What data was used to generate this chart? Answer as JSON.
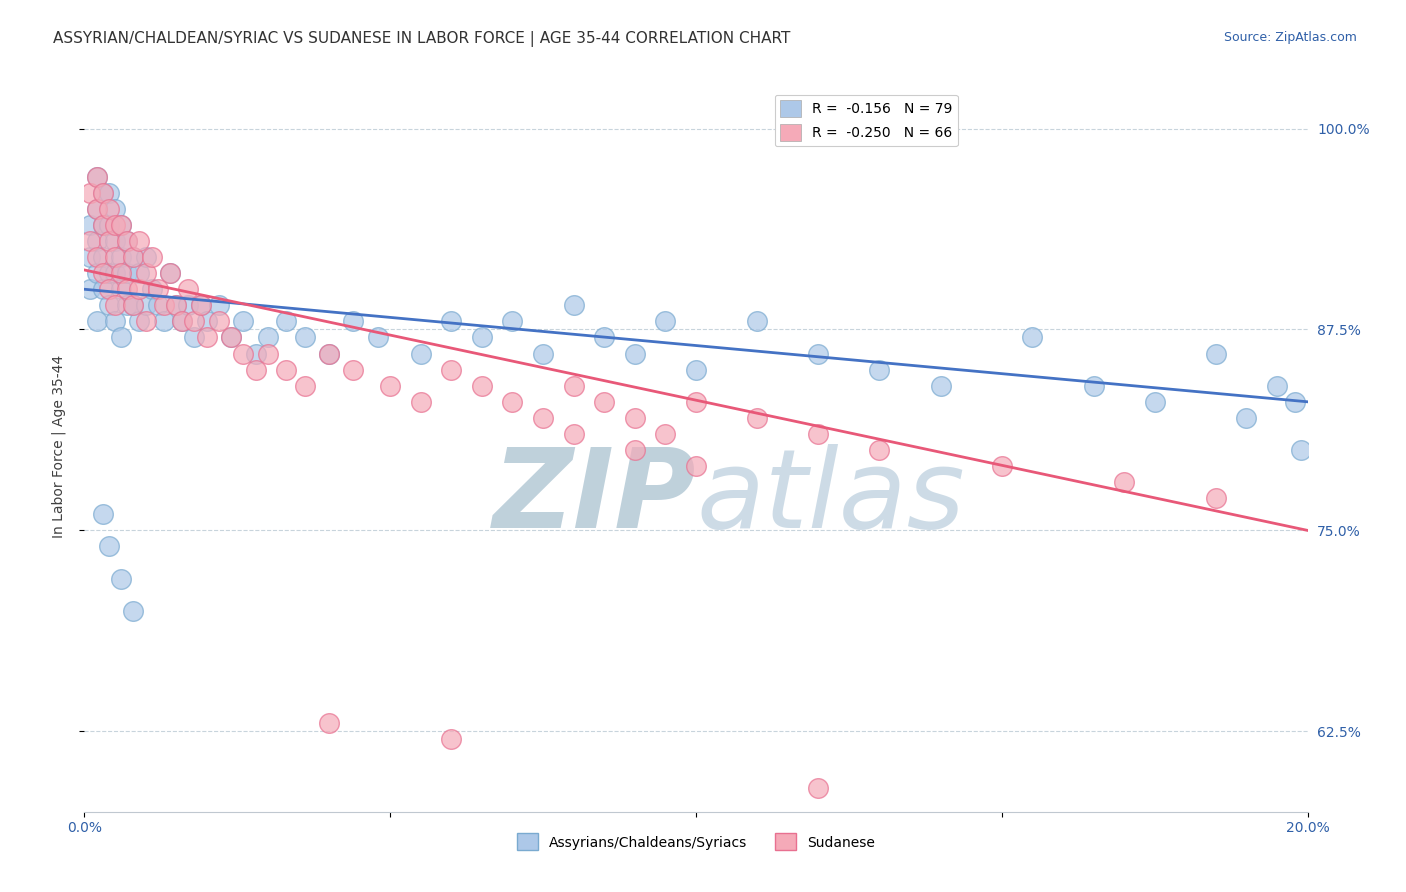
{
  "title": "ASSYRIAN/CHALDEAN/SYRIAC VS SUDANESE IN LABOR FORCE | AGE 35-44 CORRELATION CHART",
  "source_text": "Source: ZipAtlas.com",
  "ylabel": "In Labor Force | Age 35-44",
  "xmin": 0.0,
  "xmax": 0.2,
  "ymin": 0.575,
  "ymax": 1.03,
  "yticks": [
    0.625,
    0.75,
    0.875,
    1.0
  ],
  "ytick_labels": [
    "62.5%",
    "75.0%",
    "87.5%",
    "100.0%"
  ],
  "xticks": [
    0.0,
    0.05,
    0.1,
    0.15,
    0.2
  ],
  "xtick_labels": [
    "0.0%",
    "",
    "",
    "",
    "20.0%"
  ],
  "legend_entries": [
    {
      "label": "R =  -0.156   N = 79",
      "color": "#adc8e8"
    },
    {
      "label": "R =  -0.250   N = 66",
      "color": "#f5aab8"
    }
  ],
  "series1_color": "#adc8e8",
  "series2_color": "#f5aab8",
  "series1_edge": "#7aaad0",
  "series2_edge": "#e87090",
  "trend1_color": "#4472c4",
  "trend2_color": "#e85878",
  "watermark_color": "#dce8f0",
  "background_color": "#ffffff",
  "grid_color": "#c8d4dc",
  "title_fontsize": 11,
  "axis_label_fontsize": 10,
  "tick_fontsize": 10,
  "legend_fontsize": 10,
  "source_fontsize": 9,
  "series1_x": [
    0.001,
    0.001,
    0.001,
    0.002,
    0.002,
    0.002,
    0.002,
    0.002,
    0.003,
    0.003,
    0.003,
    0.003,
    0.004,
    0.004,
    0.004,
    0.004,
    0.005,
    0.005,
    0.005,
    0.005,
    0.006,
    0.006,
    0.006,
    0.006,
    0.007,
    0.007,
    0.007,
    0.008,
    0.008,
    0.009,
    0.009,
    0.01,
    0.01,
    0.011,
    0.012,
    0.013,
    0.014,
    0.015,
    0.016,
    0.017,
    0.018,
    0.019,
    0.02,
    0.022,
    0.024,
    0.026,
    0.028,
    0.03,
    0.033,
    0.036,
    0.04,
    0.044,
    0.048,
    0.055,
    0.06,
    0.065,
    0.07,
    0.075,
    0.08,
    0.085,
    0.09,
    0.095,
    0.1,
    0.11,
    0.12,
    0.13,
    0.14,
    0.155,
    0.165,
    0.175,
    0.185,
    0.19,
    0.195,
    0.198,
    0.199,
    0.003,
    0.004,
    0.006,
    0.008
  ],
  "series1_y": [
    0.94,
    0.92,
    0.9,
    0.97,
    0.95,
    0.93,
    0.91,
    0.88,
    0.96,
    0.94,
    0.92,
    0.9,
    0.96,
    0.94,
    0.91,
    0.89,
    0.95,
    0.93,
    0.91,
    0.88,
    0.94,
    0.92,
    0.9,
    0.87,
    0.93,
    0.91,
    0.89,
    0.92,
    0.89,
    0.91,
    0.88,
    0.92,
    0.89,
    0.9,
    0.89,
    0.88,
    0.91,
    0.89,
    0.88,
    0.89,
    0.87,
    0.89,
    0.88,
    0.89,
    0.87,
    0.88,
    0.86,
    0.87,
    0.88,
    0.87,
    0.86,
    0.88,
    0.87,
    0.86,
    0.88,
    0.87,
    0.88,
    0.86,
    0.89,
    0.87,
    0.86,
    0.88,
    0.85,
    0.88,
    0.86,
    0.85,
    0.84,
    0.87,
    0.84,
    0.83,
    0.86,
    0.82,
    0.84,
    0.83,
    0.8,
    0.76,
    0.74,
    0.72,
    0.7
  ],
  "series2_x": [
    0.001,
    0.001,
    0.002,
    0.002,
    0.002,
    0.003,
    0.003,
    0.003,
    0.004,
    0.004,
    0.004,
    0.005,
    0.005,
    0.005,
    0.006,
    0.006,
    0.007,
    0.007,
    0.008,
    0.008,
    0.009,
    0.009,
    0.01,
    0.01,
    0.011,
    0.012,
    0.013,
    0.014,
    0.015,
    0.016,
    0.017,
    0.018,
    0.019,
    0.02,
    0.022,
    0.024,
    0.026,
    0.028,
    0.03,
    0.033,
    0.036,
    0.04,
    0.044,
    0.05,
    0.055,
    0.06,
    0.065,
    0.07,
    0.075,
    0.08,
    0.085,
    0.09,
    0.095,
    0.1,
    0.11,
    0.12,
    0.13,
    0.15,
    0.17,
    0.185,
    0.04,
    0.06,
    0.08,
    0.09,
    0.1,
    0.12
  ],
  "series2_y": [
    0.96,
    0.93,
    0.97,
    0.95,
    0.92,
    0.96,
    0.94,
    0.91,
    0.95,
    0.93,
    0.9,
    0.94,
    0.92,
    0.89,
    0.94,
    0.91,
    0.93,
    0.9,
    0.92,
    0.89,
    0.93,
    0.9,
    0.91,
    0.88,
    0.92,
    0.9,
    0.89,
    0.91,
    0.89,
    0.88,
    0.9,
    0.88,
    0.89,
    0.87,
    0.88,
    0.87,
    0.86,
    0.85,
    0.86,
    0.85,
    0.84,
    0.86,
    0.85,
    0.84,
    0.83,
    0.85,
    0.84,
    0.83,
    0.82,
    0.84,
    0.83,
    0.82,
    0.81,
    0.83,
    0.82,
    0.81,
    0.8,
    0.79,
    0.78,
    0.77,
    0.63,
    0.62,
    0.81,
    0.8,
    0.79,
    0.59
  ]
}
